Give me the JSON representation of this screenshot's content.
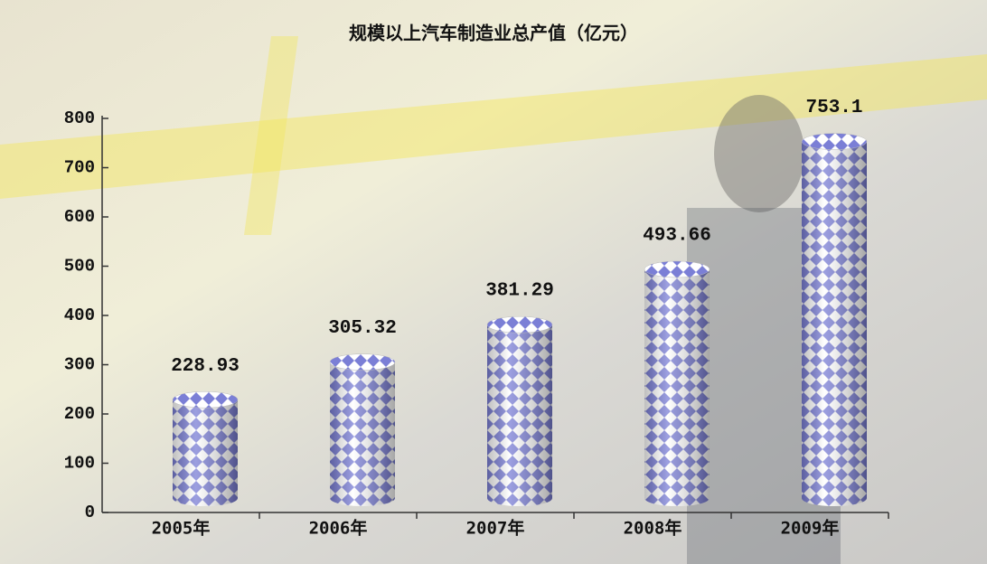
{
  "chart_data": {
    "type": "bar",
    "title": "规模以上汽车制造业总产值（亿元）",
    "categories": [
      "2005年",
      "2006年",
      "2007年",
      "2008年",
      "2009年"
    ],
    "values": [
      228.93,
      305.32,
      381.29,
      493.66,
      753.1
    ],
    "color": "#7b7fd6",
    "ylim": [
      0,
      800
    ],
    "yticks": [
      0,
      100,
      200,
      300,
      400,
      500,
      600,
      700,
      800
    ]
  }
}
